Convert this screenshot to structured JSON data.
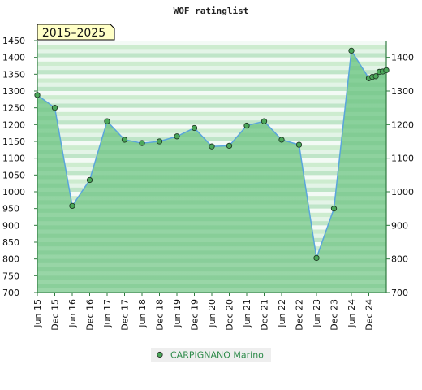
{
  "chart_data": {
    "type": "line",
    "title": "WOF ratinglist",
    "period_label": "2015–2025",
    "categories": [
      "Jun 15",
      "Dec 15",
      "Jun 16",
      "Dec 16",
      "Jun 17",
      "Dec 17",
      "Jun 18",
      "Dec 18",
      "Jun 19",
      "Dec 19",
      "Jun 20",
      "Dec 20",
      "Jun 21",
      "Dec 21",
      "Jun 22",
      "Dec 22",
      "Jun 23",
      "Dec 23",
      "Jun 24",
      "Dec 24"
    ],
    "series": [
      {
        "name": "CARPIGNANO Marino",
        "x": [
          0,
          1,
          2,
          3,
          4,
          5,
          6,
          7,
          8,
          9,
          10,
          11,
          12,
          13,
          14,
          15,
          16,
          17,
          18,
          19,
          19.2,
          19.4,
          19.6,
          19.8,
          20
        ],
        "values": [
          1288,
          1250,
          958,
          1035,
          1210,
          1155,
          1145,
          1150,
          1165,
          1190,
          1135,
          1137,
          1197,
          1210,
          1155,
          1140,
          803,
          950,
          1420,
          1338,
          1342,
          1344,
          1357,
          1358,
          1362
        ]
      }
    ],
    "y_left": {
      "min": 700,
      "max": 1450,
      "step": 50
    },
    "y_right": {
      "min": 700,
      "max": 1400,
      "step": 100
    },
    "grid": true,
    "legend_position": "bottom-center",
    "colors": {
      "line": "#5aa5dc",
      "marker": "#4ca85a",
      "area_top": "#7ecc92",
      "area_bottom": "#99d4a6",
      "band_light": "#f2faf4",
      "band_mid": "#c8e9d0",
      "legend_text": "#2e8b4a",
      "period_bg": "#ffffc6"
    }
  }
}
